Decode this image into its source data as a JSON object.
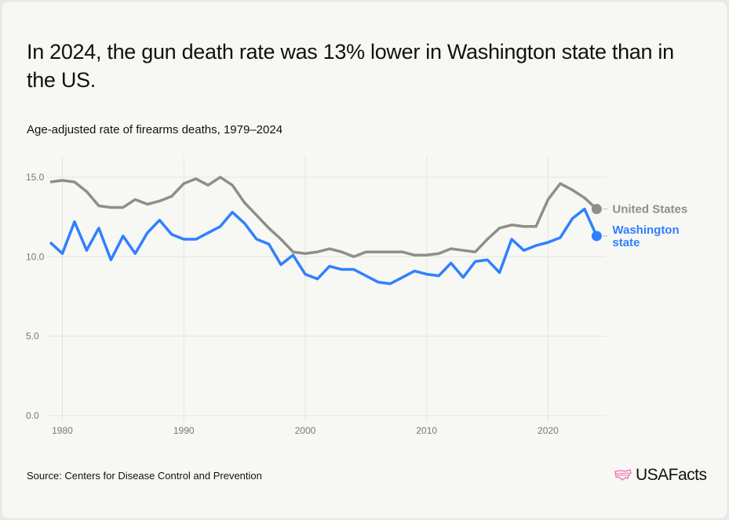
{
  "title": "In 2024, the gun death rate was 13% lower in Washington state than in the US.",
  "subtitle": "Age-adjusted rate of firearms deaths, 1979–2024",
  "source": "Source: Centers for Disease Control and Prevention",
  "logo": "USAFacts",
  "chart_data": {
    "type": "line",
    "title": "",
    "xlabel": "",
    "ylabel": "",
    "xlim": [
      1979,
      2024
    ],
    "ylim": [
      0,
      16
    ],
    "grid": true,
    "x_ticks": [
      1980,
      1990,
      2000,
      2010,
      2020
    ],
    "x_tick_labels": [
      "1980",
      "1990",
      "2000",
      "2010",
      "2020"
    ],
    "y_ticks": [
      0,
      5,
      10,
      15
    ],
    "y_tick_labels": [
      "0.0",
      "5.0",
      "10.0",
      "15.0"
    ],
    "x": [
      1979,
      1980,
      1981,
      1982,
      1983,
      1984,
      1985,
      1986,
      1987,
      1988,
      1989,
      1990,
      1991,
      1992,
      1993,
      1994,
      1995,
      1996,
      1997,
      1998,
      1999,
      2000,
      2001,
      2002,
      2003,
      2004,
      2005,
      2006,
      2007,
      2008,
      2009,
      2010,
      2011,
      2012,
      2013,
      2014,
      2015,
      2016,
      2017,
      2018,
      2019,
      2020,
      2021,
      2022,
      2023,
      2024
    ],
    "series": [
      {
        "name": "United States",
        "color": "#8f8f8a",
        "values": [
          14.7,
          14.8,
          14.7,
          14.1,
          13.2,
          13.1,
          13.1,
          13.6,
          13.3,
          13.5,
          13.8,
          14.6,
          14.9,
          14.5,
          15.0,
          14.5,
          13.4,
          12.6,
          11.8,
          11.1,
          10.3,
          10.2,
          10.3,
          10.5,
          10.3,
          10.0,
          10.3,
          10.3,
          10.3,
          10.3,
          10.1,
          10.1,
          10.2,
          10.5,
          10.4,
          10.3,
          11.1,
          11.8,
          12.0,
          11.9,
          11.9,
          13.6,
          14.6,
          14.2,
          13.7,
          13.0
        ]
      },
      {
        "name": "Washington state",
        "color": "#2f80ff",
        "values": [
          10.9,
          10.2,
          12.2,
          10.4,
          11.8,
          9.8,
          11.3,
          10.2,
          11.5,
          12.3,
          11.4,
          11.1,
          11.1,
          11.5,
          11.9,
          12.8,
          12.1,
          11.1,
          10.8,
          9.5,
          10.1,
          8.9,
          8.6,
          9.4,
          9.2,
          9.2,
          8.8,
          8.4,
          8.3,
          8.7,
          9.1,
          8.9,
          8.8,
          9.6,
          8.7,
          9.7,
          9.8,
          9.0,
          11.1,
          10.4,
          10.7,
          10.9,
          11.2,
          12.4,
          13.0,
          11.3
        ]
      }
    ],
    "legend": "direct labels at line ends (right)"
  }
}
